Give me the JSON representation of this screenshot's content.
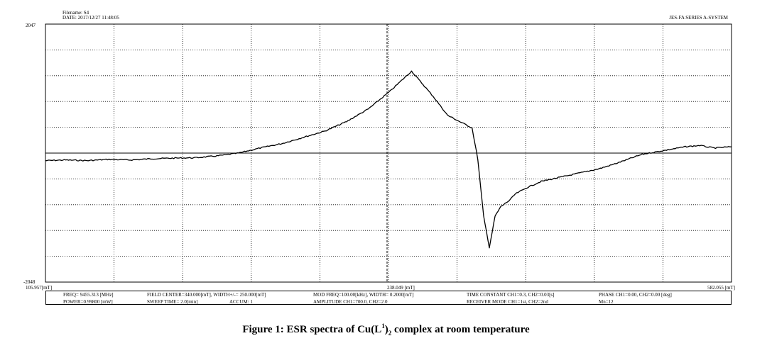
{
  "header": {
    "filename": "Filename: S4",
    "date": "DATE: 2017/12/27 11:48:05",
    "system": "JES-FA SERIES A-SYSTEM"
  },
  "chart_data": {
    "type": "line",
    "title": "",
    "xlabel": "",
    "ylabel": "",
    "x_unit": "mT",
    "xlim": [
      105.957,
      582.055
    ],
    "ylim": [
      -2048,
      2047
    ],
    "y_tick_labels": {
      "top": "2047",
      "bottom": "-2048"
    },
    "x_tick_labels": {
      "left": "105.957[mT]",
      "center": "238.049 [mT]",
      "right": "582.055 [mT]"
    },
    "grid": true,
    "series": [
      {
        "x": [
          105.96,
          120,
          135,
          150,
          165,
          180,
          195,
          210,
          225,
          240,
          255,
          270,
          285,
          300,
          315,
          330,
          345,
          360,
          375,
          385,
          395,
          402,
          406,
          410,
          414,
          418,
          422,
          428,
          432,
          436,
          440,
          445,
          450,
          460,
          470,
          480,
          490,
          500,
          510,
          520,
          530,
          540,
          550,
          560,
          570,
          582.06
        ],
        "y": [
          -120,
          -110,
          -120,
          -100,
          -110,
          -90,
          -80,
          -75,
          -45,
          0,
          80,
          150,
          250,
          350,
          500,
          700,
          980,
          1300,
          900,
          600,
          480,
          400,
          -100,
          -1000,
          -1500,
          -1000,
          -850,
          -750,
          -650,
          -600,
          -550,
          -500,
          -450,
          -400,
          -350,
          -300,
          -250,
          -180,
          -100,
          -20,
          20,
          60,
          100,
          120,
          80,
          100
        ]
      }
    ]
  },
  "params": {
    "row1": {
      "freq": "FREQ= 9455.313 [MHz]",
      "field": "FIELD CENTER=340.000[mT], WIDTH+/-= 250.000[mT]",
      "mod": "MOD FREQ=100.00[kHz], WIDTH= 0.2000[mT]",
      "time": "TIME CONSTANT CH1=0.3, CH2=0.03[s]",
      "phase": "PHASE CH1=0.00, CH2=0.00 [deg]"
    },
    "row2": {
      "power": "POWER=0.99800 [mW]",
      "sweep": "SWEEP TIME= 2.0[min]",
      "accum": "ACCUM: 1",
      "amp": "AMPLITUDE CH1=700.0, CH2=2.0",
      "rcv": "RECEIVER MODE CH1=1st, CH2=2nd",
      "mn": "Mn=12"
    }
  },
  "caption": {
    "prefix": "Figure 1: ESR spectra of Cu(L",
    "sup": "1",
    "suffix": ")",
    "sub": "2",
    "rest": " complex at room temperature"
  }
}
